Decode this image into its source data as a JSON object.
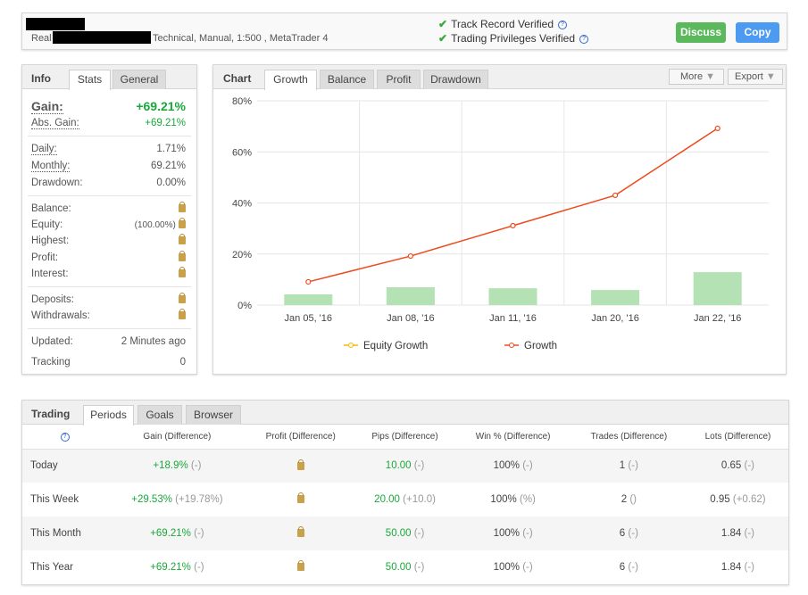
{
  "header": {
    "account_type": "Real",
    "description": "Technical, Manual, 1:500 , MetaTrader 4",
    "verified": [
      "Track Record Verified",
      "Trading Privileges Verified"
    ],
    "discuss_label": "Discuss",
    "copy_label": "Copy"
  },
  "info": {
    "title": "Info",
    "tabs": [
      "Stats",
      "General"
    ],
    "gain_label": "Gain:",
    "gain": "+69.21%",
    "abs_gain_label": "Abs. Gain:",
    "abs_gain": "+69.21%",
    "daily_label": "Daily:",
    "daily": "1.71%",
    "monthly_label": "Monthly:",
    "monthly": "69.21%",
    "drawdown_label": "Drawdown:",
    "drawdown": "0.00%",
    "balance_label": "Balance:",
    "equity_label": "Equity:",
    "equity_pct": "(100.00%)",
    "highest_label": "Highest:",
    "profit_label": "Profit:",
    "interest_label": "Interest:",
    "deposits_label": "Deposits:",
    "withdrawals_label": "Withdrawals:",
    "updated_label": "Updated:",
    "updated": "2 Minutes ago",
    "tracking_label": "Tracking",
    "tracking": "0"
  },
  "chart": {
    "title": "Chart",
    "tabs": [
      "Growth",
      "Balance",
      "Profit",
      "Drawdown"
    ],
    "more_label": "More",
    "export_label": "Export"
  },
  "chart_data": {
    "type": "line",
    "categories": [
      "Jan 05, '16",
      "Jan 08, '16",
      "Jan 11, '16",
      "Jan 20, '16",
      "Jan 22, '16"
    ],
    "series": [
      {
        "name": "Equity Growth",
        "type": "bar",
        "values": [
          4.2,
          7.0,
          6.6,
          5.9,
          12.9
        ],
        "color": "#b5e2b5",
        "legend_color": "#f5b800"
      },
      {
        "name": "Growth",
        "type": "line",
        "values": [
          9.1,
          19.2,
          31.1,
          43.0,
          69.21
        ],
        "color": "#ee4b1d"
      }
    ],
    "yticks": [
      "0%",
      "20%",
      "40%",
      "60%",
      "80%"
    ],
    "ylim": [
      0,
      80
    ],
    "grid": true,
    "legend": "bottom"
  },
  "trading": {
    "title": "Trading",
    "tabs": [
      "Periods",
      "Goals",
      "Browser"
    ],
    "headers": [
      "Gain (Difference)",
      "Profit (Difference)",
      "Pips (Difference)",
      "Win % (Difference)",
      "Trades (Difference)",
      "Lots (Difference)"
    ],
    "rows": [
      {
        "period": "Today",
        "gain": "+18.9%",
        "gain_d": "(-)",
        "pips": "10.00",
        "pips_d": "(-)",
        "win": "100%",
        "win_d": "(-)",
        "trades": "1",
        "trades_d": "(-)",
        "lots": "0.65",
        "lots_d": "(-)"
      },
      {
        "period": "This Week",
        "gain": "+29.53%",
        "gain_d": "(+19.78%)",
        "pips": "20.00",
        "pips_d": "(+10.0)",
        "win": "100%",
        "win_d": "(%)",
        "trades": "2",
        "trades_d": "()",
        "lots": "0.95",
        "lots_d": "(+0.62)"
      },
      {
        "period": "This Month",
        "gain": "+69.21%",
        "gain_d": "(-)",
        "pips": "50.00",
        "pips_d": "(-)",
        "win": "100%",
        "win_d": "(-)",
        "trades": "6",
        "trades_d": "(-)",
        "lots": "1.84",
        "lots_d": "(-)"
      },
      {
        "period": "This Year",
        "gain": "+69.21%",
        "gain_d": "(-)",
        "pips": "50.00",
        "pips_d": "(-)",
        "win": "100%",
        "win_d": "(-)",
        "trades": "6",
        "trades_d": "(-)",
        "lots": "1.84",
        "lots_d": "(-)"
      }
    ]
  }
}
